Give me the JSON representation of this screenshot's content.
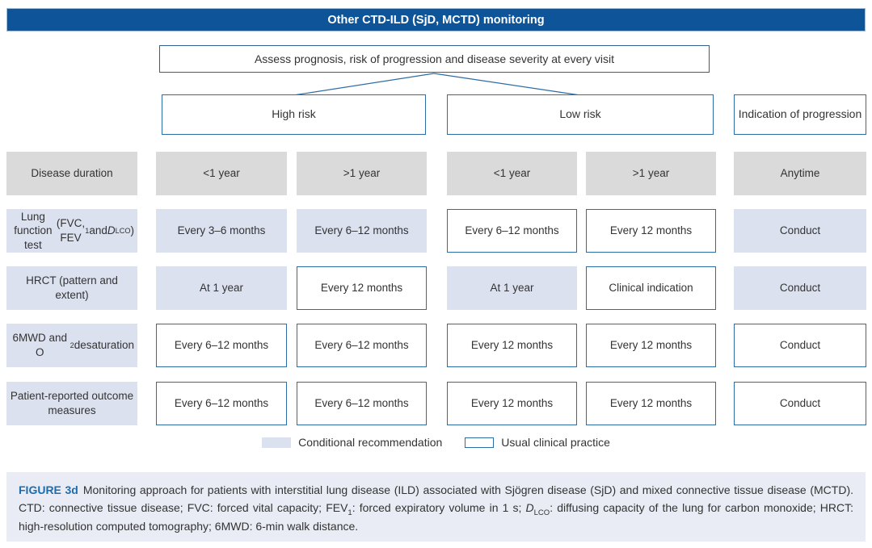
{
  "title_bar": {
    "label": "Other CTD-ILD (SjD, MCTD) monitoring"
  },
  "assess_box": {
    "label": "Assess prognosis, risk of progression and disease severity at every visit"
  },
  "branch_boxes": {
    "high_risk": "High risk",
    "low_risk": "Low risk",
    "indication": "Indication of progression"
  },
  "table": {
    "column_groups": [
      "High risk <1 year",
      "High risk >1 year",
      "Low risk <1 year",
      "Low risk >1 year",
      "Indication of progression"
    ],
    "rows": [
      {
        "label_style": "gray",
        "label_rich": [
          {
            "t": "Disease duration"
          }
        ],
        "cells": [
          {
            "text": "<1 year",
            "style": "gray"
          },
          {
            "text": ">1 year",
            "style": "gray"
          },
          {
            "text": "<1 year",
            "style": "gray"
          },
          {
            "text": ">1 year",
            "style": "gray"
          },
          {
            "text": "Anytime",
            "style": "gray"
          }
        ]
      },
      {
        "label_style": "filled",
        "label_rich": [
          {
            "t": "Lung function test"
          },
          {
            "br": true
          },
          {
            "t": "(FVC, FEV"
          },
          {
            "t": "1",
            "sub": true
          },
          {
            "t": " and "
          },
          {
            "t": "D",
            "i": true
          },
          {
            "t": "LCO",
            "sub": true
          },
          {
            "t": ")"
          }
        ],
        "cells": [
          {
            "text": "Every 3–6 months",
            "style": "filled"
          },
          {
            "text": "Every 6–12 months",
            "style": "filled"
          },
          {
            "text": "Every 6–12 months",
            "style": "outlined"
          },
          {
            "text": "Every 12 months",
            "style": "outlined"
          },
          {
            "text": "Conduct",
            "style": "filled"
          }
        ]
      },
      {
        "label_style": "filled",
        "label_rich": [
          {
            "t": "HRCT (pattern and extent)"
          }
        ],
        "cells": [
          {
            "text": "At 1 year",
            "style": "filled"
          },
          {
            "text": "Every 12 months",
            "style": "outlined"
          },
          {
            "text": "At 1 year",
            "style": "filled"
          },
          {
            "text": "Clinical indication",
            "style": "outlined"
          },
          {
            "text": "Conduct",
            "style": "filled"
          }
        ]
      },
      {
        "label_style": "filled",
        "label_rich": [
          {
            "t": "6MWD and O"
          },
          {
            "t": "2",
            "sub": true
          },
          {
            "br": true
          },
          {
            "t": "desaturation"
          }
        ],
        "cells": [
          {
            "text": "Every 6–12 months",
            "style": "outlined"
          },
          {
            "text": "Every 6–12 months",
            "style": "outlined"
          },
          {
            "text": "Every 12 months",
            "style": "outlined"
          },
          {
            "text": "Every 12 months",
            "style": "outlined"
          },
          {
            "text": "Conduct",
            "style": "outlined"
          }
        ]
      },
      {
        "label_style": "filled",
        "label_rich": [
          {
            "t": "Patient-reported outcome measures"
          }
        ],
        "cells": [
          {
            "text": "Every 6–12 months",
            "style": "outlined"
          },
          {
            "text": "Every 6–12 months",
            "style": "outlined"
          },
          {
            "text": "Every 12 months",
            "style": "outlined"
          },
          {
            "text": "Every 12 months",
            "style": "outlined"
          },
          {
            "text": "Conduct",
            "style": "outlined"
          }
        ]
      }
    ]
  },
  "legend": {
    "conditional": "Conditional recommendation",
    "usual": "Usual clinical practice"
  },
  "caption_rich": [
    {
      "t": "FIGURE 3d",
      "b": true,
      "accent": true
    },
    {
      "t": "Monitoring approach for patients with interstitial lung disease (ILD) associated with Sjögren disease (SjD) and mixed connective tissue disease (MCTD). CTD: connective tissue disease; FVC: forced vital capacity; FEV"
    },
    {
      "t": "1",
      "sub": true
    },
    {
      "t": ": forced expiratory volume in 1 s; "
    },
    {
      "t": "D",
      "i": true
    },
    {
      "t": "LCO",
      "sub": true
    },
    {
      "t": ": diffusing capacity of the lung for carbon monoxide; HRCT: high-resolution computed tomography; 6MWD: 6-min walk distance."
    }
  ],
  "colors": {
    "header_bg": "#0e5498",
    "border_blue": "#2d6ca5",
    "gray_fill": "#dadada",
    "lavender_fill": "#dce1f0",
    "caption_bg": "#e9ecf4",
    "accent_text": "#1b6db0"
  }
}
